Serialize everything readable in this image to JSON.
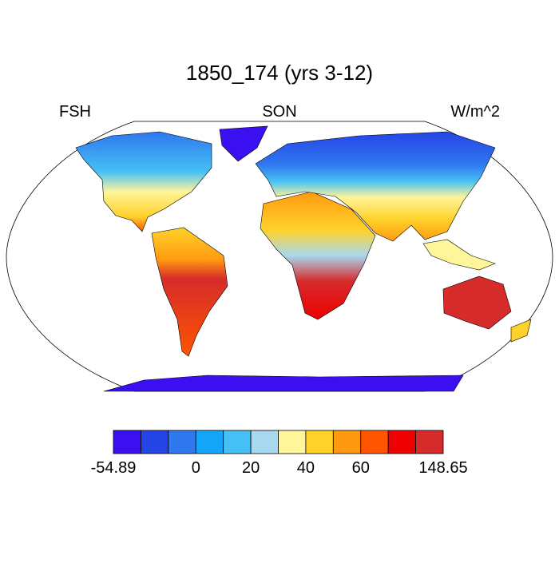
{
  "title": "1850_174 (yrs 3-12)",
  "left_string": "FSH",
  "center_string": "SON",
  "right_string": "W/m^2",
  "colorbar": {
    "colors": [
      "#3b10f0",
      "#2544e6",
      "#2f78ee",
      "#12a5f8",
      "#45c0f5",
      "#a8d8f0",
      "#fff59a",
      "#ffd22a",
      "#ff9a10",
      "#ff5500",
      "#ee0000",
      "#d62b2b"
    ],
    "boundaries": [
      -54.89,
      null,
      null,
      0,
      null,
      20,
      null,
      40,
      null,
      60,
      null,
      null,
      148.65
    ]
  }
}
